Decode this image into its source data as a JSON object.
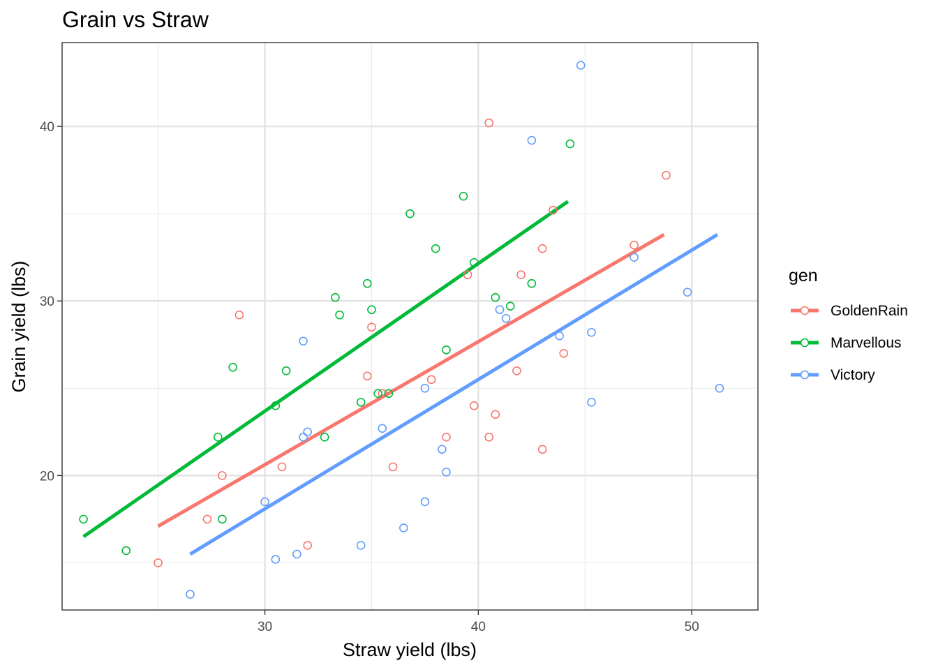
{
  "chart_data": {
    "type": "scatter",
    "title": "Grain vs Straw",
    "xlabel": "Straw yield (lbs)",
    "ylabel": "Grain yield (lbs)",
    "xlim": [
      20.5,
      53.1
    ],
    "ylim": [
      12.3,
      44.8
    ],
    "x_ticks": [
      30,
      40,
      50
    ],
    "y_ticks": [
      20,
      30,
      40
    ],
    "x_minor": [
      25,
      35,
      45
    ],
    "y_minor": [
      15,
      25,
      35
    ],
    "grid": true,
    "legend": {
      "title": "gen",
      "position": "right"
    },
    "series": [
      {
        "name": "GoldenRain",
        "color": "#F8766D",
        "points": [
          [
            25,
            15
          ],
          [
            27.3,
            17.5
          ],
          [
            28,
            20
          ],
          [
            28.8,
            29.2
          ],
          [
            30.8,
            20.5
          ],
          [
            32,
            16
          ],
          [
            34.8,
            25.7
          ],
          [
            35,
            28.5
          ],
          [
            35.5,
            24.7
          ],
          [
            36,
            20.5
          ],
          [
            37.8,
            25.5
          ],
          [
            38.5,
            22.2
          ],
          [
            39.5,
            31.5
          ],
          [
            39.8,
            24
          ],
          [
            40.5,
            22.2
          ],
          [
            40.5,
            40.2
          ],
          [
            40.8,
            23.5
          ],
          [
            41.8,
            26
          ],
          [
            42,
            31.5
          ],
          [
            43,
            21.5
          ],
          [
            43,
            33
          ],
          [
            43.5,
            35.2
          ],
          [
            44,
            27
          ],
          [
            47.3,
            33.2
          ],
          [
            48.8,
            37.2
          ]
        ],
        "fit": [
          [
            25,
            17.1
          ],
          [
            48.7,
            33.8
          ]
        ]
      },
      {
        "name": "Marvellous",
        "color": "#00BA38",
        "points": [
          [
            21.5,
            17.5
          ],
          [
            23.5,
            15.7
          ],
          [
            27.8,
            22.2
          ],
          [
            28,
            17.5
          ],
          [
            28.5,
            26.2
          ],
          [
            30.5,
            24
          ],
          [
            31,
            26
          ],
          [
            32.8,
            22.2
          ],
          [
            33.3,
            30.2
          ],
          [
            33.5,
            29.2
          ],
          [
            34.5,
            24.2
          ],
          [
            34.8,
            31
          ],
          [
            35,
            29.5
          ],
          [
            35.3,
            24.7
          ],
          [
            35.8,
            24.7
          ],
          [
            36.8,
            35
          ],
          [
            38,
            33
          ],
          [
            38.5,
            27.2
          ],
          [
            39.3,
            36
          ],
          [
            39.8,
            32.2
          ],
          [
            40.8,
            30.2
          ],
          [
            41.5,
            29.7
          ],
          [
            42.5,
            31
          ],
          [
            44.3,
            39
          ]
        ],
        "fit": [
          [
            21.5,
            16.5
          ],
          [
            44.2,
            35.7
          ]
        ]
      },
      {
        "name": "Victory",
        "color": "#619CFF",
        "points": [
          [
            26.5,
            13.2
          ],
          [
            30,
            18.5
          ],
          [
            30.5,
            15.2
          ],
          [
            31.5,
            15.5
          ],
          [
            31.8,
            27.7
          ],
          [
            31.8,
            22.2
          ],
          [
            32,
            22.5
          ],
          [
            34.5,
            16
          ],
          [
            35.5,
            22.7
          ],
          [
            36.5,
            17
          ],
          [
            37.5,
            25
          ],
          [
            37.5,
            18.5
          ],
          [
            38.3,
            21.5
          ],
          [
            38.5,
            20.2
          ],
          [
            41,
            29.5
          ],
          [
            41.3,
            29
          ],
          [
            42.5,
            39.2
          ],
          [
            43.8,
            28
          ],
          [
            44.8,
            43.5
          ],
          [
            45.3,
            28.2
          ],
          [
            45.3,
            24.2
          ],
          [
            47.3,
            32.5
          ],
          [
            49.8,
            30.5
          ],
          [
            51.3,
            25
          ]
        ],
        "fit": [
          [
            26.5,
            15.5
          ],
          [
            51.2,
            33.8
          ]
        ]
      }
    ]
  }
}
